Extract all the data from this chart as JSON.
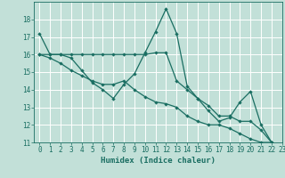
{
  "xlabel": "Humidex (Indice chaleur)",
  "xlim": [
    -0.5,
    23
  ],
  "ylim": [
    11,
    19
  ],
  "yticks": [
    11,
    12,
    13,
    14,
    15,
    16,
    17,
    18
  ],
  "xticks": [
    0,
    1,
    2,
    3,
    4,
    5,
    6,
    7,
    8,
    9,
    10,
    11,
    12,
    13,
    14,
    15,
    16,
    17,
    18,
    19,
    20,
    21,
    22,
    23
  ],
  "bg_color": "#c2e0d8",
  "grid_color": "#ffffff",
  "line_color": "#1a6e62",
  "line1_x": [
    0,
    1,
    2,
    3,
    4,
    5,
    6,
    7,
    8,
    9,
    10,
    11,
    12,
    13,
    14,
    15,
    16,
    17,
    18,
    19,
    20,
    21,
    22
  ],
  "line1_y": [
    17.2,
    16.0,
    16.0,
    15.8,
    15.1,
    14.4,
    14.0,
    13.5,
    14.3,
    14.9,
    16.1,
    17.3,
    18.6,
    17.2,
    14.2,
    13.5,
    12.8,
    12.2,
    12.4,
    13.3,
    13.9,
    12.0,
    11.0
  ],
  "line2_x": [
    0,
    1,
    2,
    3,
    4,
    5,
    6,
    7,
    8,
    9,
    10,
    11,
    12,
    13,
    14,
    15,
    16,
    17,
    18,
    19,
    20,
    21,
    22
  ],
  "line2_y": [
    16.0,
    16.0,
    16.0,
    16.0,
    16.0,
    16.0,
    16.0,
    16.0,
    16.0,
    16.0,
    16.0,
    16.1,
    16.1,
    14.5,
    14.0,
    13.5,
    13.1,
    12.5,
    12.5,
    12.2,
    12.2,
    11.7,
    11.0
  ],
  "line3_x": [
    0,
    1,
    2,
    3,
    4,
    5,
    6,
    7,
    8,
    9,
    10,
    11,
    12,
    13,
    14,
    15,
    16,
    17,
    18,
    19,
    20,
    21,
    22
  ],
  "line3_y": [
    16.0,
    15.8,
    15.5,
    15.1,
    14.8,
    14.5,
    14.3,
    14.3,
    14.5,
    14.0,
    13.6,
    13.3,
    13.2,
    13.0,
    12.5,
    12.2,
    12.0,
    12.0,
    11.8,
    11.5,
    11.2,
    11.0,
    11.0
  ]
}
